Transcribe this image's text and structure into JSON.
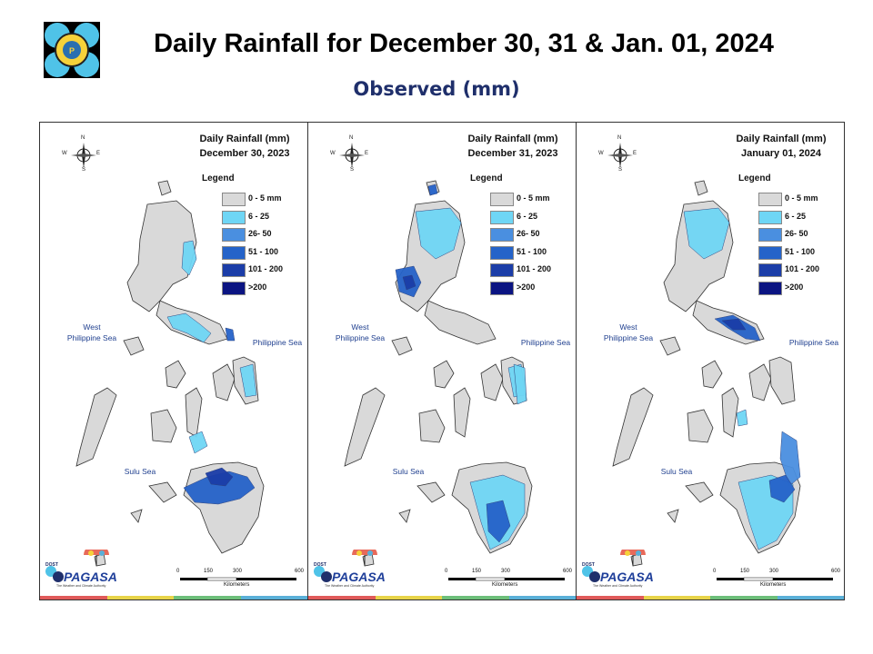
{
  "header": {
    "title": "Daily Rainfall for December 30, 31 & Jan. 01, 2024",
    "subtitle": "Observed (mm)"
  },
  "panels": [
    {
      "id": "dec30",
      "title_line1": "Daily Rainfall (mm)",
      "title_line2": "December 30, 2023",
      "rain_zones": [
        {
          "region": "north-luzon-east",
          "level": "6 - 25"
        },
        {
          "region": "southern-luzon-bicol",
          "level": "6 - 25"
        },
        {
          "region": "catanduanes",
          "level": "51 - 100"
        },
        {
          "region": "eastern-visayas",
          "level": "6 - 25"
        },
        {
          "region": "central-visayas-south",
          "level": "6 - 25"
        },
        {
          "region": "western-mindanao",
          "level": "51 - 100"
        },
        {
          "region": "northern-mindanao-core",
          "level": "101 - 200"
        }
      ]
    },
    {
      "id": "dec31",
      "title_line1": "Daily Rainfall (mm)",
      "title_line2": "December 31, 2023",
      "rain_zones": [
        {
          "region": "north-luzon",
          "level": "6 - 25"
        },
        {
          "region": "batanes",
          "level": "51 - 100"
        },
        {
          "region": "central-luzon-west",
          "level": "51 - 100"
        },
        {
          "region": "central-luzon-core",
          "level": "101 - 200"
        },
        {
          "region": "eastern-visayas",
          "level": "6 - 25"
        },
        {
          "region": "northeast-mindanao",
          "level": "6 - 25"
        },
        {
          "region": "southern-mindanao",
          "level": "6 - 25"
        },
        {
          "region": "southwest-mindanao",
          "level": "51 - 100"
        }
      ]
    },
    {
      "id": "jan01",
      "title_line1": "Daily Rainfall (mm)",
      "title_line2": "January 01, 2024",
      "rain_zones": [
        {
          "region": "north-luzon",
          "level": "6 - 25"
        },
        {
          "region": "bicol",
          "level": "51 - 100"
        },
        {
          "region": "bicol-core",
          "level": "101 - 200"
        },
        {
          "region": "visayas-scattered",
          "level": "6 - 25"
        },
        {
          "region": "eastern-mindanao",
          "level": "26- 50"
        },
        {
          "region": "southern-mindanao",
          "level": "6 - 25"
        },
        {
          "region": "davao-core",
          "level": "51 - 100"
        }
      ]
    }
  ],
  "legend": {
    "heading": "Legend",
    "items": [
      {
        "label": "0 - 5 mm",
        "color": "#d9d9d9"
      },
      {
        "label": "6 - 25",
        "color": "#6fd6f5"
      },
      {
        "label": "26- 50",
        "color": "#4a8fe0"
      },
      {
        "label": "51 - 100",
        "color": "#2563c9"
      },
      {
        "label": "101 - 200",
        "color": "#1b3da8"
      },
      {
        "label": ">200",
        "color": "#0b1482"
      }
    ]
  },
  "map_labels": {
    "west_sea_line1": "West",
    "west_sea_line2": "Philippine Sea",
    "east_sea": "Philippine Sea",
    "south_sea": "Sulu Sea"
  },
  "compass": {
    "n": "N",
    "s": "S",
    "e": "E",
    "w": "W"
  },
  "scale": {
    "ticks": [
      "0",
      "150",
      "300",
      "600"
    ],
    "unit": "Kilometers"
  },
  "branding": {
    "agency": "PAGASA",
    "top_text": "DOST",
    "tagline": "The Weather and Climate Authority"
  },
  "strip_colors": [
    "#e05a5a",
    "#e8d44a",
    "#6dbf7a",
    "#5ab0d8"
  ]
}
